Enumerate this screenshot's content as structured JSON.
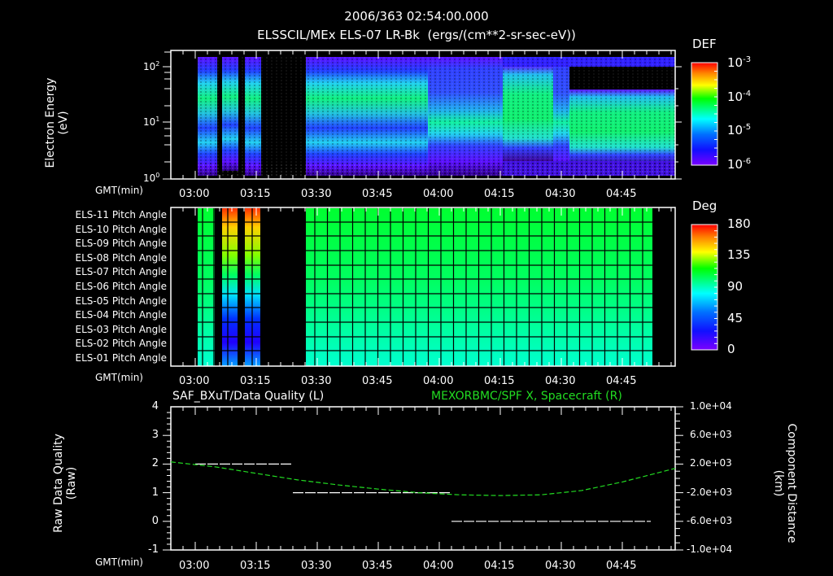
{
  "header": {
    "timestamp": "2006/363 02:54:00.000",
    "title": "ELSSCIL/MEx ELS-07 LR-Bk  (ergs/(cm**2-sr-sec-eV))"
  },
  "time_axis": {
    "label": "GMT(min)",
    "ticks": [
      "03:00",
      "03:15",
      "03:30",
      "03:45",
      "04:00",
      "04:15",
      "04:30",
      "04:45"
    ]
  },
  "panel1": {
    "ylabel_line1": "Electron Energy",
    "ylabel_line2": "(eV)",
    "yticks": [
      "10",
      "10",
      "10"
    ],
    "yexp": [
      "0",
      "1",
      "2"
    ],
    "colorbar": {
      "title": "DEF",
      "ticks": [
        "10",
        "10",
        "10",
        "10"
      ],
      "exps": [
        "-3",
        "-4",
        "-5",
        "-6"
      ]
    }
  },
  "panel2": {
    "row_labels": [
      "ELS-11 Pitch Angle",
      "ELS-10 Pitch Angle",
      "ELS-09 Pitch Angle",
      "ELS-08 Pitch Angle",
      "ELS-07 Pitch Angle",
      "ELS-06 Pitch Angle",
      "ELS-05 Pitch Angle",
      "ELS-04 Pitch Angle",
      "ELS-03 Pitch Angle",
      "ELS-02 Pitch Angle",
      "ELS-01 Pitch Angle"
    ],
    "colorbar": {
      "title": "Deg",
      "ticks": [
        "180",
        "135",
        "90",
        "45",
        "0"
      ]
    }
  },
  "panel3": {
    "left_title": "SAF_BXuT/Data Quality (L)",
    "right_title": "MEXORBMC/SPF X, Spacecraft (R)",
    "ylabel_left_line1": "Raw Data Quality",
    "ylabel_left_line2": "(Raw)",
    "ylabel_right_line1": "Component Distance",
    "ylabel_right_line2": "(km)",
    "left_ticks": [
      "4",
      "3",
      "2",
      "1",
      "0",
      "-1"
    ],
    "right_ticks": [
      "1.0e+04",
      "6.0e+03",
      "2.0e+03",
      "-2.0e+03",
      "-6.0e+03",
      "-1.0e+04"
    ]
  },
  "colors": {
    "background": "#000000",
    "axis": "#ffffff",
    "right_series": "#22dd22"
  },
  "chart_data": [
    {
      "type": "heatmap",
      "title": "ELSSCIL/MEx ELS-07 LR-Bk (ergs/(cm**2-sr-sec-eV))",
      "xlabel": "GMT(min)",
      "ylabel": "Electron Energy (eV)",
      "yscale": "log",
      "ylim": [
        1,
        150
      ],
      "x_range": [
        "02:54",
        "04:58"
      ],
      "colorbar": {
        "label": "DEF",
        "scale": "log",
        "range": [
          1e-06,
          0.001
        ]
      },
      "data_gaps": [
        [
          "02:54",
          "03:01"
        ],
        [
          "03:05",
          "03:06"
        ],
        [
          "03:08",
          "03:10"
        ],
        [
          "03:13",
          "03:14"
        ],
        [
          "03:16",
          "03:27"
        ]
      ],
      "description": "Electron spectrogram; data intervals 03:01-03:16 (three strips) and 03:27-04:58; peak flux ~1e-4 around 20-40 eV 03:27-03:50, lower band ~6 eV after 04:00, enhanced broad flux 04:15-04:25 and 04:33-04:58"
    },
    {
      "type": "heatmap",
      "title": "ELS Pitch Angles",
      "xlabel": "GMT(min)",
      "categories": [
        "ELS-11",
        "ELS-10",
        "ELS-09",
        "ELS-08",
        "ELS-07",
        "ELS-06",
        "ELS-05",
        "ELS-04",
        "ELS-03",
        "ELS-02",
        "ELS-01"
      ],
      "colorbar": {
        "label": "Deg",
        "range": [
          0,
          180
        ]
      },
      "approx_values_deg": [
        105,
        103,
        101,
        99,
        96,
        92,
        88,
        84,
        80,
        76,
        72
      ],
      "data_intervals": [
        [
          "03:01",
          "03:05"
        ],
        [
          "03:07",
          "03:10"
        ],
        [
          "03:12",
          "03:15"
        ],
        [
          "03:27",
          "04:52"
        ]
      ],
      "note": "Strips at 03:07-03:10 and 03:12-03:15 range ~170 deg (ELS-11) to ~20 deg (ELS-04)"
    },
    {
      "type": "line",
      "title_left": "SAF_BXuT/Data Quality (L)",
      "title_right": "MEXORBMC/SPF X, Spacecraft (R)",
      "xlabel": "GMT(min)",
      "ylabel_left": "Raw Data Quality (Raw)",
      "ylabel_right": "Component Distance (km)",
      "ylim_left": [
        -1,
        4
      ],
      "ylim_right": [
        -10000,
        10000
      ],
      "series": [
        {
          "name": "Data Quality (L)",
          "axis": "left",
          "segments": [
            {
              "x": [
                "03:00",
                "03:24"
              ],
              "y": 2
            },
            {
              "x": [
                "03:24",
                "04:03"
              ],
              "y": 1
            },
            {
              "x": [
                "04:03",
                "04:52"
              ],
              "y": 0
            }
          ]
        },
        {
          "name": "SPF X Spacecraft (R)",
          "axis": "right",
          "color": "#22dd22",
          "x": [
            "02:54",
            "03:05",
            "03:15",
            "03:25",
            "03:35",
            "03:45",
            "03:55",
            "04:05",
            "04:15",
            "04:25",
            "04:35",
            "04:45",
            "04:58"
          ],
          "y": [
            2300,
            1600,
            700,
            -200,
            -900,
            -1500,
            -2000,
            -2300,
            -2400,
            -2300,
            -1700,
            -500,
            1400
          ]
        }
      ]
    }
  ]
}
